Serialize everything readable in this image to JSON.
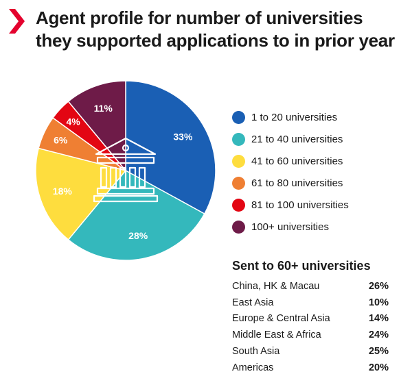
{
  "title": {
    "line1": "Agent profile for number of universities",
    "line2": "they supported applications to in prior year"
  },
  "colors": {
    "accent": "#e4032e",
    "1 to 20 universities": "#1a5fb4",
    "21 to 40 universities": "#34b8bc",
    "41 to 60 universities": "#fedd3e",
    "61 to 80 universities": "#ef7f33",
    "81 to 100 universities": "#e30613",
    "100+ universities": "#6e1b48"
  },
  "icons": {
    "title": "chevron-right-icon",
    "center": "university-building-icon"
  },
  "chart_data": [
    {
      "type": "pie",
      "categories": [
        "1 to 20 universities",
        "21 to 40 universities",
        "41 to 60 universities",
        "61 to 80 universities",
        "81 to 100 universities",
        "100+ universities"
      ],
      "values": [
        33,
        28,
        18,
        6,
        4,
        11
      ],
      "labels": [
        "33%",
        "28%",
        "18%",
        "6%",
        "4%",
        "11%"
      ],
      "legend": "right",
      "start": "12 o'clock, clockwise"
    },
    {
      "type": "table",
      "title": "Sent to 60+ universities",
      "rows": [
        {
          "region": "China, HK & Macau",
          "value": "26%"
        },
        {
          "region": "East Asia",
          "value": "10%"
        },
        {
          "region": "Europe & Central Asia",
          "value": "14%"
        },
        {
          "region": "Middle East & Africa",
          "value": "24%"
        },
        {
          "region": "South Asia",
          "value": "25%"
        },
        {
          "region": "Americas",
          "value": "20%"
        }
      ]
    }
  ]
}
